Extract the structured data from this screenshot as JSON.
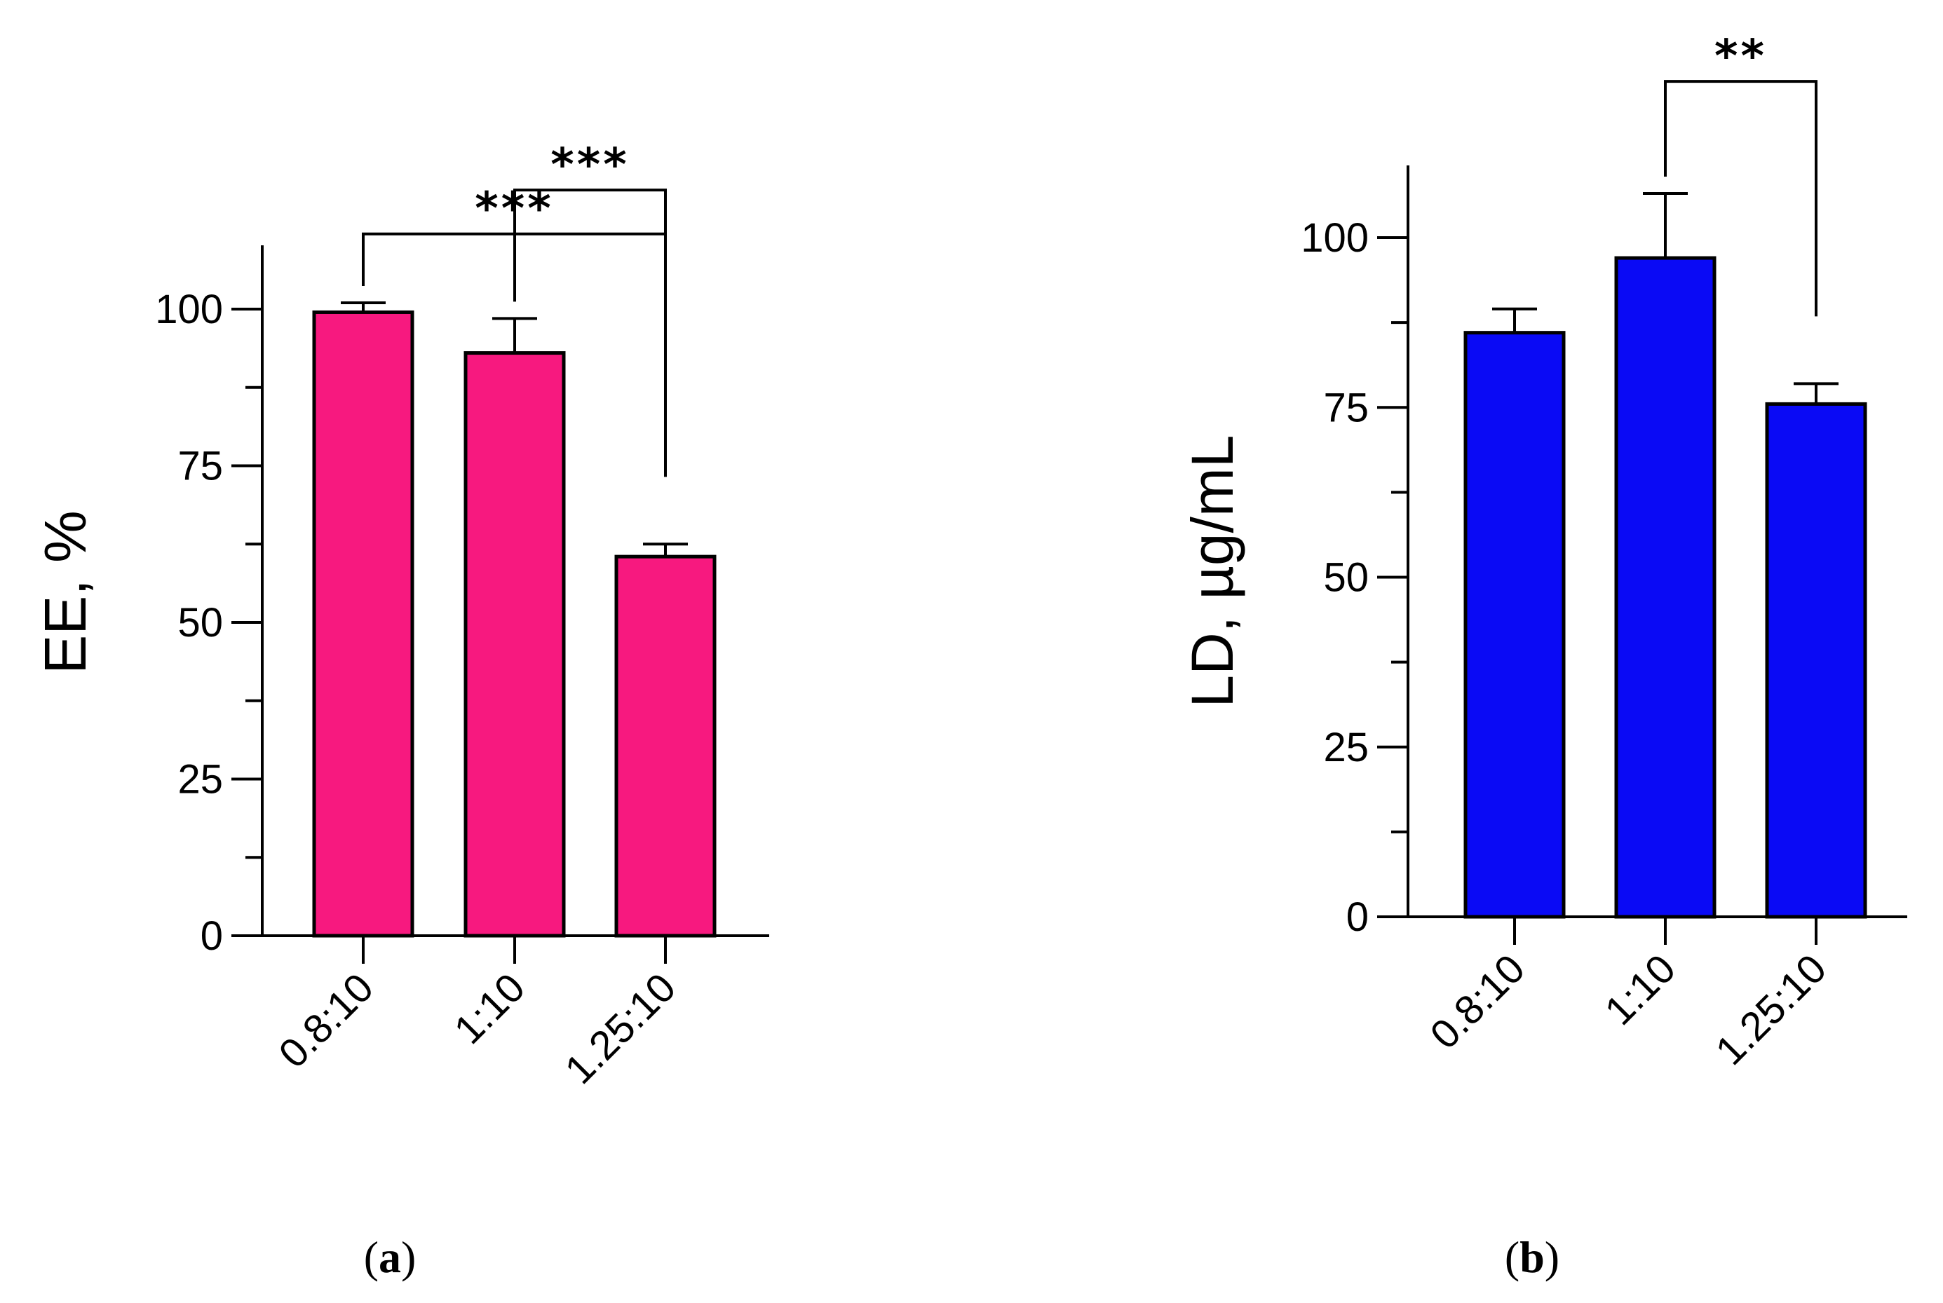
{
  "chart_data": [
    {
      "type": "bar",
      "panel_label": "a",
      "ylabel": "EE, %",
      "xlabel": "",
      "ylim": [
        0,
        110
      ],
      "y_ticks": [
        0,
        25,
        50,
        75,
        100
      ],
      "y_minor_ticks": [
        12.5,
        37.5,
        62.5,
        87.5
      ],
      "categories": [
        "0.8:10",
        "1:10",
        "1.25:10"
      ],
      "values": [
        99.5,
        93,
        60.5
      ],
      "errors": [
        1.5,
        5.5,
        2
      ],
      "color": "#f7197f",
      "significance": [
        {
          "from": 0,
          "to": 2,
          "label": "***",
          "level": 112
        },
        {
          "from": 1,
          "to": 2,
          "label": "***",
          "level": 119
        }
      ]
    },
    {
      "type": "bar",
      "panel_label": "b",
      "ylabel": "LD, µg/mL",
      "xlabel": "",
      "ylim": [
        0,
        110
      ],
      "y_ticks": [
        0,
        25,
        50,
        75,
        100
      ],
      "y_minor_ticks": [
        12.5,
        37.5,
        62.5,
        87.5
      ],
      "categories": [
        "0.8:10",
        "1:10",
        "1.25:10"
      ],
      "values": [
        86,
        97,
        75.5
      ],
      "errors": [
        3.5,
        9.5,
        3
      ],
      "color": "#0a0af5",
      "significance": [
        {
          "from": 1,
          "to": 2,
          "label": "**",
          "level": 123
        }
      ]
    }
  ]
}
